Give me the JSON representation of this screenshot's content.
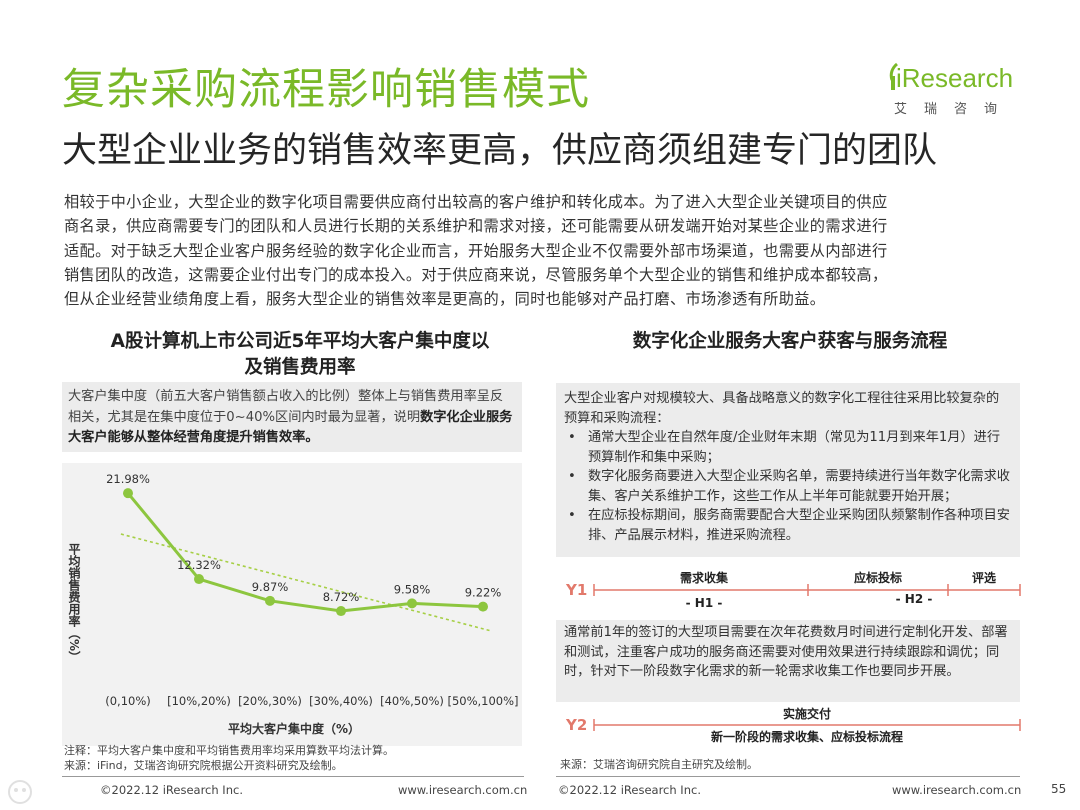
{
  "header": {
    "main_title": "复杂采购流程影响销售模式",
    "sub_title": "大型企业业务的销售效率更高，供应商须组建专门的团队",
    "logo_text": "iResearch",
    "logo_cn": "艾瑞咨询"
  },
  "intro": {
    "lines": [
      "相较于中小企业，大型企业的数字化项目需要供应商付出较高的客户维护和转化成本。为了进入大型企业关键项目的供应",
      "商名录，供应商需要专门的团队和人员进行长期的关系维护和需求对接，还可能需要从研发端开始对某些企业的需求进行",
      "适配。对于缺乏大型企业客户服务经验的数字化企业而言，开始服务大型企业不仅需要外部市场渠道，也需要从内部进行",
      "销售团队的改造，这需要企业付出专门的成本投入。对于供应商来说，尽管服务单个大型企业的销售和维护成本都较高，",
      "但从企业经营业绩角度上看，服务大型企业的销售效率是更高的，同时也能够对产品打磨、市场渗透有所助益。"
    ]
  },
  "left_panel": {
    "title_line1": "A股计算机上市公司近5年平均大客户集中度以",
    "title_line2": "及销售费用率",
    "note_plain": "大客户集中度（前五大客户销售额占收入的比例）整体上与销售费用率呈反相关，尤其是在集中度位于0~40%区间内时最为显著，说明",
    "note_bold": "数字化企业服务大客户能够从整体经营角度提升销售效率。",
    "footnote_line1": "注释：平均大客户集中度和平均销售费用率均采用算数平均法计算。",
    "footnote_line2": "来源：iFind，艾瑞咨询研究院根据公开资料研究及绘制。"
  },
  "chart_data": {
    "type": "line",
    "categories": [
      "(0,10%)",
      "[10%,20%)",
      "[20%,30%)",
      "[30%,40%)",
      "[40%,50%)",
      "[50%,100%]"
    ],
    "values": [
      21.98,
      12.32,
      9.87,
      8.72,
      9.58,
      9.22
    ],
    "value_labels": [
      "21.98%",
      "12.32%",
      "9.87%",
      "8.72%",
      "9.58%",
      "9.22%"
    ],
    "xlabel": "平均大客户集中度（%）",
    "ylabel": "平均销售费用率（%）",
    "trendline": true,
    "colors": {
      "line": "#8dc63f",
      "trend": "#a6cf45"
    }
  },
  "right_panel": {
    "title": "数字化企业服务大客户获客与服务流程",
    "intro": "大型企业客户对规模较大、具备战略意义的数字化工程往往采用比较复杂的预算和采购流程：",
    "bullets": [
      "通常大型企业在自然年度/企业财年末期（常见为11月到来年1月）进行预算制作和集中采购；",
      "数字化服务商要进入大型企业采购名单，需要持续进行当年数字化需求收集、客户关系维护工作，这些工作从上半年可能就要开始开展；",
      "在应标投标期间，服务商需要配合大型企业采购团队频繁制作各种项目安排、产品展示材料，推进采购流程。"
    ],
    "timeline1": {
      "label": "Y1",
      "seg1": "需求收集",
      "seg2": "应标投标",
      "seg3": "评选",
      "h1": "- H1 -",
      "h2": "- H2 -"
    },
    "box2": "通常前1年的签订的大型项目需要在次年花费数月时间进行定制化开发、部署和测试，注重客户成功的服务商还需要对使用效果进行持续跟踪和调优；同时，针对下一阶段数字化需求的新一轮需求收集工作也要同步开展。",
    "timeline2": {
      "label": "Y2",
      "top": "实施交付",
      "bottom": "新一阶段的需求收集、应标投标流程"
    },
    "source": "来源：艾瑞咨询研究院自主研究及绘制。"
  },
  "footer": {
    "left_copyright": "©2022.12 iResearch Inc.",
    "left_url": "www.iresearch.com.cn",
    "right_copyright": "©2022.12 iResearch Inc.",
    "right_url": "www.iresearch.com.cn",
    "page": "55"
  },
  "colors": {
    "accent": "#7ab928",
    "timeline_red": "#e2796b",
    "box_bg": "#ececec"
  }
}
